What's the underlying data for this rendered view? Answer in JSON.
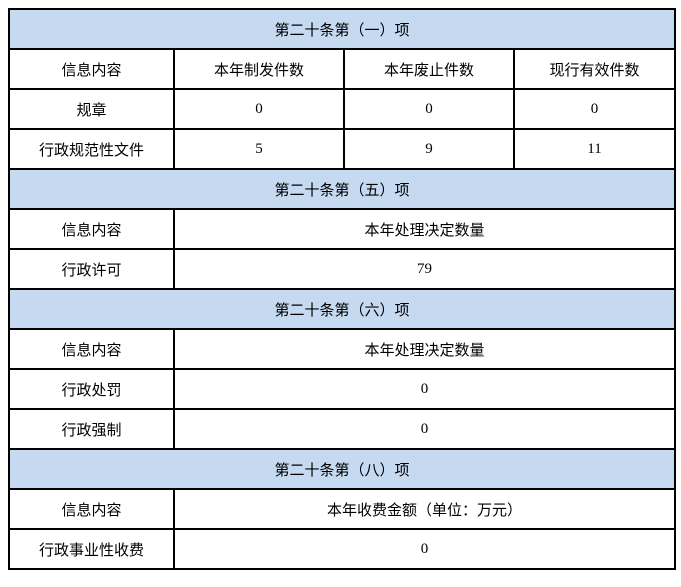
{
  "colors": {
    "section_header_bg": "#C5D9F1",
    "grid_border": "#000000",
    "text": "#000000",
    "page_bg": "#FFFFFF"
  },
  "table": {
    "sections": [
      {
        "title": "第二十条第（一）项",
        "header_row": [
          "信息内容",
          "本年制发件数",
          "本年废止件数",
          "现行有效件数"
        ],
        "rows": [
          [
            "规章",
            "0",
            "0",
            "0"
          ],
          [
            "行政规范性文件",
            "5",
            "9",
            "11"
          ]
        ]
      },
      {
        "title": "第二十条第（五）项",
        "header_row": [
          "信息内容",
          "本年处理决定数量"
        ],
        "rows": [
          [
            "行政许可",
            "79"
          ]
        ]
      },
      {
        "title": "第二十条第（六）项",
        "header_row": [
          "信息内容",
          "本年处理决定数量"
        ],
        "rows": [
          [
            "行政处罚",
            "0"
          ],
          [
            "行政强制",
            "0"
          ]
        ]
      },
      {
        "title": "第二十条第（八）项",
        "header_row": [
          "信息内容",
          "本年收费金额（单位：万元）"
        ],
        "rows": [
          [
            "行政事业性收费",
            "0"
          ]
        ]
      }
    ]
  }
}
